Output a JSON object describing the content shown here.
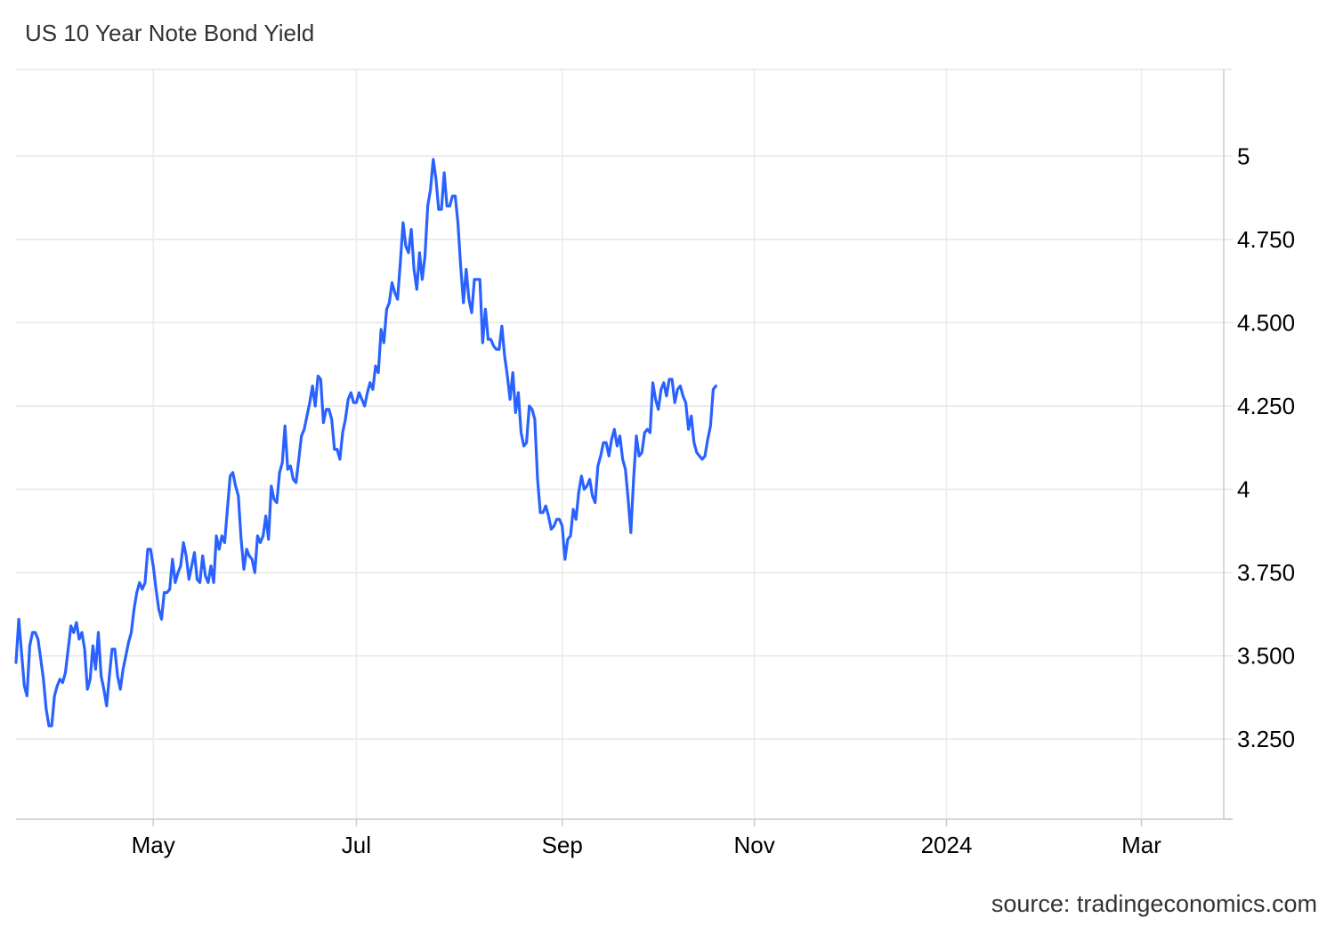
{
  "page": {
    "title": "US 10 Year Note Bond Yield",
    "source": "source: tradingeconomics.com"
  },
  "chart_data": {
    "type": "line",
    "title": "US 10 Year Note Bond Yield",
    "xlabel": "",
    "ylabel": "",
    "line_color": "#2962ff",
    "grid_color": "#e6e6e6",
    "grid": true,
    "ylim": [
      3.01,
      5.26
    ],
    "yticks": [
      {
        "value": 5,
        "label": "5"
      },
      {
        "value": 4.75,
        "label": "4.750"
      },
      {
        "value": 4.5,
        "label": "4.500"
      },
      {
        "value": 4.25,
        "label": "4.250"
      },
      {
        "value": 4,
        "label": "4"
      },
      {
        "value": 3.75,
        "label": "3.750"
      },
      {
        "value": 3.5,
        "label": "3.500"
      },
      {
        "value": 3.25,
        "label": "3.250"
      }
    ],
    "xlim": [
      -43,
      397
    ],
    "xticks": [
      {
        "value": 7,
        "label": "May"
      },
      {
        "value": 81,
        "label": "Jul"
      },
      {
        "value": 156,
        "label": "Sep"
      },
      {
        "value": 226,
        "label": "Nov"
      },
      {
        "value": 296,
        "label": "2024"
      },
      {
        "value": 367,
        "label": "Mar"
      }
    ],
    "series": [
      {
        "values": [
          [
            -43,
            3.48
          ],
          [
            -42,
            3.61
          ],
          [
            -41,
            3.51
          ],
          [
            -40,
            3.41
          ],
          [
            -39,
            3.38
          ],
          [
            -38,
            3.53
          ],
          [
            -37,
            3.57
          ],
          [
            -36,
            3.57
          ],
          [
            -35,
            3.55
          ],
          [
            -34,
            3.49
          ],
          [
            -33,
            3.43
          ],
          [
            -32,
            3.34
          ],
          [
            -31,
            3.29
          ],
          [
            -30,
            3.29
          ],
          [
            -29,
            3.38
          ],
          [
            -28,
            3.41
          ],
          [
            -27,
            3.43
          ],
          [
            -26,
            3.42
          ],
          [
            -25,
            3.45
          ],
          [
            -24,
            3.52
          ],
          [
            -23,
            3.59
          ],
          [
            -22,
            3.57
          ],
          [
            -21,
            3.6
          ],
          [
            -20,
            3.55
          ],
          [
            -19,
            3.57
          ],
          [
            -18,
            3.52
          ],
          [
            -17,
            3.4
          ],
          [
            -16,
            3.43
          ],
          [
            -15,
            3.53
          ],
          [
            -14,
            3.46
          ],
          [
            -13,
            3.57
          ],
          [
            -12,
            3.44
          ],
          [
            -11,
            3.4
          ],
          [
            -10,
            3.35
          ],
          [
            -9,
            3.44
          ],
          [
            -8,
            3.52
          ],
          [
            -7,
            3.52
          ],
          [
            -6,
            3.44
          ],
          [
            -5,
            3.4
          ],
          [
            -4,
            3.46
          ],
          [
            -3,
            3.5
          ],
          [
            -2,
            3.54
          ],
          [
            -1,
            3.57
          ],
          [
            0,
            3.64
          ],
          [
            1,
            3.69
          ],
          [
            2,
            3.72
          ],
          [
            3,
            3.7
          ],
          [
            4,
            3.72
          ],
          [
            5,
            3.82
          ],
          [
            6,
            3.82
          ],
          [
            7,
            3.77
          ],
          [
            8,
            3.7
          ],
          [
            9,
            3.64
          ],
          [
            10,
            3.61
          ],
          [
            11,
            3.69
          ],
          [
            12,
            3.69
          ],
          [
            13,
            3.7
          ],
          [
            14,
            3.79
          ],
          [
            15,
            3.72
          ],
          [
            16,
            3.75
          ],
          [
            17,
            3.77
          ],
          [
            18,
            3.84
          ],
          [
            19,
            3.8
          ],
          [
            20,
            3.73
          ],
          [
            21,
            3.77
          ],
          [
            22,
            3.81
          ],
          [
            23,
            3.73
          ],
          [
            24,
            3.72
          ],
          [
            25,
            3.8
          ],
          [
            26,
            3.74
          ],
          [
            27,
            3.72
          ],
          [
            28,
            3.77
          ],
          [
            29,
            3.72
          ],
          [
            30,
            3.86
          ],
          [
            31,
            3.82
          ],
          [
            32,
            3.86
          ],
          [
            33,
            3.84
          ],
          [
            34,
            3.94
          ],
          [
            35,
            4.04
          ],
          [
            36,
            4.05
          ],
          [
            37,
            4.01
          ],
          [
            38,
            3.98
          ],
          [
            39,
            3.85
          ],
          [
            40,
            3.76
          ],
          [
            41,
            3.82
          ],
          [
            42,
            3.8
          ],
          [
            43,
            3.79
          ],
          [
            44,
            3.75
          ],
          [
            45,
            3.86
          ],
          [
            46,
            3.84
          ],
          [
            47,
            3.86
          ],
          [
            48,
            3.92
          ],
          [
            49,
            3.85
          ],
          [
            50,
            4.01
          ],
          [
            51,
            3.97
          ],
          [
            52,
            3.96
          ],
          [
            53,
            4.05
          ],
          [
            54,
            4.08
          ],
          [
            55,
            4.19
          ],
          [
            56,
            4.06
          ],
          [
            57,
            4.07
          ],
          [
            58,
            4.03
          ],
          [
            59,
            4.02
          ],
          [
            60,
            4.09
          ],
          [
            61,
            4.16
          ],
          [
            62,
            4.18
          ],
          [
            63,
            4.22
          ],
          [
            64,
            4.26
          ],
          [
            65,
            4.31
          ],
          [
            66,
            4.25
          ],
          [
            67,
            4.34
          ],
          [
            68,
            4.33
          ],
          [
            69,
            4.2
          ],
          [
            70,
            4.24
          ],
          [
            71,
            4.24
          ],
          [
            72,
            4.21
          ],
          [
            73,
            4.12
          ],
          [
            74,
            4.12
          ],
          [
            75,
            4.09
          ],
          [
            76,
            4.17
          ],
          [
            77,
            4.21
          ],
          [
            78,
            4.27
          ],
          [
            79,
            4.29
          ],
          [
            80,
            4.26
          ],
          [
            81,
            4.26
          ],
          [
            82,
            4.29
          ],
          [
            83,
            4.27
          ],
          [
            84,
            4.25
          ],
          [
            85,
            4.29
          ],
          [
            86,
            4.32
          ],
          [
            87,
            4.3
          ],
          [
            88,
            4.37
          ],
          [
            89,
            4.35
          ],
          [
            90,
            4.48
          ],
          [
            91,
            4.44
          ],
          [
            92,
            4.54
          ],
          [
            93,
            4.56
          ],
          [
            94,
            4.62
          ],
          [
            95,
            4.59
          ],
          [
            96,
            4.57
          ],
          [
            97,
            4.68
          ],
          [
            98,
            4.8
          ],
          [
            99,
            4.73
          ],
          [
            100,
            4.71
          ],
          [
            101,
            4.78
          ],
          [
            102,
            4.66
          ],
          [
            103,
            4.6
          ],
          [
            104,
            4.71
          ],
          [
            105,
            4.63
          ],
          [
            106,
            4.7
          ],
          [
            107,
            4.85
          ],
          [
            108,
            4.9
          ],
          [
            109,
            4.99
          ],
          [
            110,
            4.93
          ],
          [
            111,
            4.84
          ],
          [
            112,
            4.84
          ],
          [
            113,
            4.95
          ],
          [
            114,
            4.85
          ],
          [
            115,
            4.85
          ],
          [
            116,
            4.88
          ],
          [
            117,
            4.88
          ],
          [
            118,
            4.8
          ],
          [
            119,
            4.67
          ],
          [
            120,
            4.56
          ],
          [
            121,
            4.66
          ],
          [
            122,
            4.57
          ],
          [
            123,
            4.53
          ],
          [
            124,
            4.63
          ],
          [
            125,
            4.63
          ],
          [
            126,
            4.63
          ],
          [
            127,
            4.44
          ],
          [
            128,
            4.54
          ],
          [
            129,
            4.45
          ],
          [
            130,
            4.45
          ],
          [
            131,
            4.43
          ],
          [
            132,
            4.42
          ],
          [
            133,
            4.42
          ],
          [
            134,
            4.49
          ],
          [
            135,
            4.4
          ],
          [
            136,
            4.34
          ],
          [
            137,
            4.27
          ],
          [
            138,
            4.35
          ],
          [
            139,
            4.23
          ],
          [
            140,
            4.29
          ],
          [
            141,
            4.17
          ],
          [
            142,
            4.13
          ],
          [
            143,
            4.14
          ],
          [
            144,
            4.25
          ],
          [
            145,
            4.24
          ],
          [
            146,
            4.21
          ],
          [
            147,
            4.03
          ],
          [
            148,
            3.93
          ],
          [
            149,
            3.93
          ],
          [
            150,
            3.95
          ],
          [
            151,
            3.92
          ],
          [
            152,
            3.88
          ],
          [
            153,
            3.89
          ],
          [
            154,
            3.91
          ],
          [
            155,
            3.91
          ],
          [
            156,
            3.89
          ],
          [
            157,
            3.79
          ],
          [
            158,
            3.85
          ],
          [
            159,
            3.86
          ],
          [
            160,
            3.94
          ],
          [
            161,
            3.91
          ],
          [
            162,
            3.99
          ],
          [
            163,
            4.04
          ],
          [
            164,
            4.0
          ],
          [
            165,
            4.01
          ],
          [
            166,
            4.03
          ],
          [
            167,
            3.98
          ],
          [
            168,
            3.96
          ],
          [
            169,
            4.07
          ],
          [
            170,
            4.1
          ],
          [
            171,
            4.14
          ],
          [
            172,
            4.14
          ],
          [
            173,
            4.1
          ],
          [
            174,
            4.15
          ],
          [
            175,
            4.18
          ],
          [
            176,
            4.13
          ],
          [
            177,
            4.16
          ],
          [
            178,
            4.09
          ],
          [
            179,
            4.06
          ],
          [
            180,
            3.97
          ],
          [
            181,
            3.87
          ],
          [
            182,
            4.03
          ],
          [
            183,
            4.16
          ],
          [
            184,
            4.1
          ],
          [
            185,
            4.11
          ],
          [
            186,
            4.17
          ],
          [
            187,
            4.18
          ],
          [
            188,
            4.17
          ],
          [
            189,
            4.32
          ],
          [
            190,
            4.27
          ],
          [
            191,
            4.24
          ],
          [
            192,
            4.3
          ],
          [
            193,
            4.32
          ],
          [
            194,
            4.28
          ],
          [
            195,
            4.33
          ],
          [
            196,
            4.33
          ],
          [
            197,
            4.26
          ],
          [
            198,
            4.3
          ],
          [
            199,
            4.31
          ],
          [
            200,
            4.28
          ],
          [
            201,
            4.26
          ],
          [
            202,
            4.18
          ],
          [
            203,
            4.22
          ],
          [
            204,
            4.14
          ],
          [
            205,
            4.11
          ],
          [
            206,
            4.1
          ],
          [
            207,
            4.09
          ],
          [
            208,
            4.1
          ],
          [
            209,
            4.15
          ],
          [
            210,
            4.19
          ],
          [
            211,
            4.3
          ],
          [
            212,
            4.31
          ]
        ]
      }
    ]
  }
}
